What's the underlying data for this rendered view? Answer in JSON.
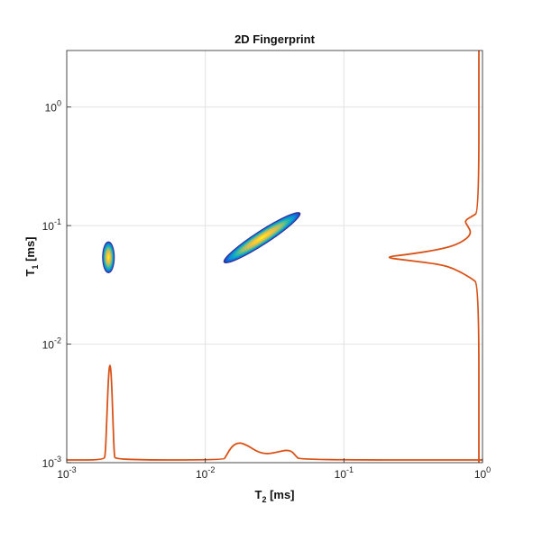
{
  "chart_data": {
    "type": "heatmap",
    "title": "2D Fingerprint",
    "xlabel": {
      "base": "T",
      "sub": "2",
      "unit": " [ms]"
    },
    "ylabel": {
      "base": "T",
      "sub": "1",
      "unit": " [ms]"
    },
    "x_scale": "log",
    "y_scale": "log",
    "xlim": [
      0.001,
      1
    ],
    "ylim": [
      0.001,
      3
    ],
    "grid": true,
    "x_ticks": [
      {
        "value": 0.001,
        "base": "10",
        "exp": "-3"
      },
      {
        "value": 0.01,
        "base": "10",
        "exp": "-2"
      },
      {
        "value": 0.1,
        "base": "10",
        "exp": "-1"
      },
      {
        "value": 1,
        "base": "10",
        "exp": "0"
      }
    ],
    "y_ticks": [
      {
        "value": 0.001,
        "base": "10",
        "exp": "-3"
      },
      {
        "value": 0.01,
        "base": "10",
        "exp": "-2"
      },
      {
        "value": 0.1,
        "base": "10",
        "exp": "-1"
      },
      {
        "value": 1,
        "base": "10",
        "exp": "0"
      }
    ],
    "peaks": [
      {
        "t2_center": 0.002,
        "t1_center": 0.05,
        "t2_range": [
          0.0019,
          0.0022
        ],
        "t1_range": [
          0.04,
          0.073
        ],
        "tilt": 0
      },
      {
        "t2_center": 0.025,
        "t1_center": 0.07,
        "t2_range": [
          0.014,
          0.047
        ],
        "t1_range": [
          0.05,
          0.125
        ],
        "tilt": 1
      }
    ],
    "t2_projection": [
      [
        0.001,
        0
      ],
      [
        0.00185,
        0
      ],
      [
        0.0019,
        0.05
      ],
      [
        0.00195,
        0.45
      ],
      [
        0.002,
        0.85
      ],
      [
        0.00205,
        1.0
      ],
      [
        0.0021,
        0.85
      ],
      [
        0.00215,
        0.45
      ],
      [
        0.0022,
        0.05
      ],
      [
        0.00225,
        0
      ],
      [
        0.0135,
        0
      ],
      [
        0.014,
        0.03
      ],
      [
        0.0155,
        0.14
      ],
      [
        0.0175,
        0.18
      ],
      [
        0.02,
        0.15
      ],
      [
        0.024,
        0.08
      ],
      [
        0.028,
        0.06
      ],
      [
        0.033,
        0.08
      ],
      [
        0.038,
        0.1
      ],
      [
        0.042,
        0.09
      ],
      [
        0.045,
        0.04
      ],
      [
        0.048,
        0
      ],
      [
        1,
        0
      ]
    ],
    "t1_projection": [
      [
        0.001,
        0
      ],
      [
        0.032,
        0
      ],
      [
        0.036,
        0.08
      ],
      [
        0.043,
        0.25
      ],
      [
        0.047,
        0.4
      ],
      [
        0.051,
        0.75
      ],
      [
        0.054,
        1.0
      ],
      [
        0.057,
        0.75
      ],
      [
        0.062,
        0.45
      ],
      [
        0.068,
        0.25
      ],
      [
        0.078,
        0.12
      ],
      [
        0.088,
        0.08
      ],
      [
        0.1,
        0.12
      ],
      [
        0.11,
        0.15
      ],
      [
        0.12,
        0.07
      ],
      [
        0.13,
        0
      ],
      [
        3,
        0
      ]
    ],
    "projection_color": "#d95319",
    "colormap": [
      "#352a87",
      "#0f5cdd",
      "#1481d6",
      "#06a4ca",
      "#2eb7a4",
      "#87bf77",
      "#d1bb59",
      "#fec832",
      "#f9fb0e"
    ]
  }
}
